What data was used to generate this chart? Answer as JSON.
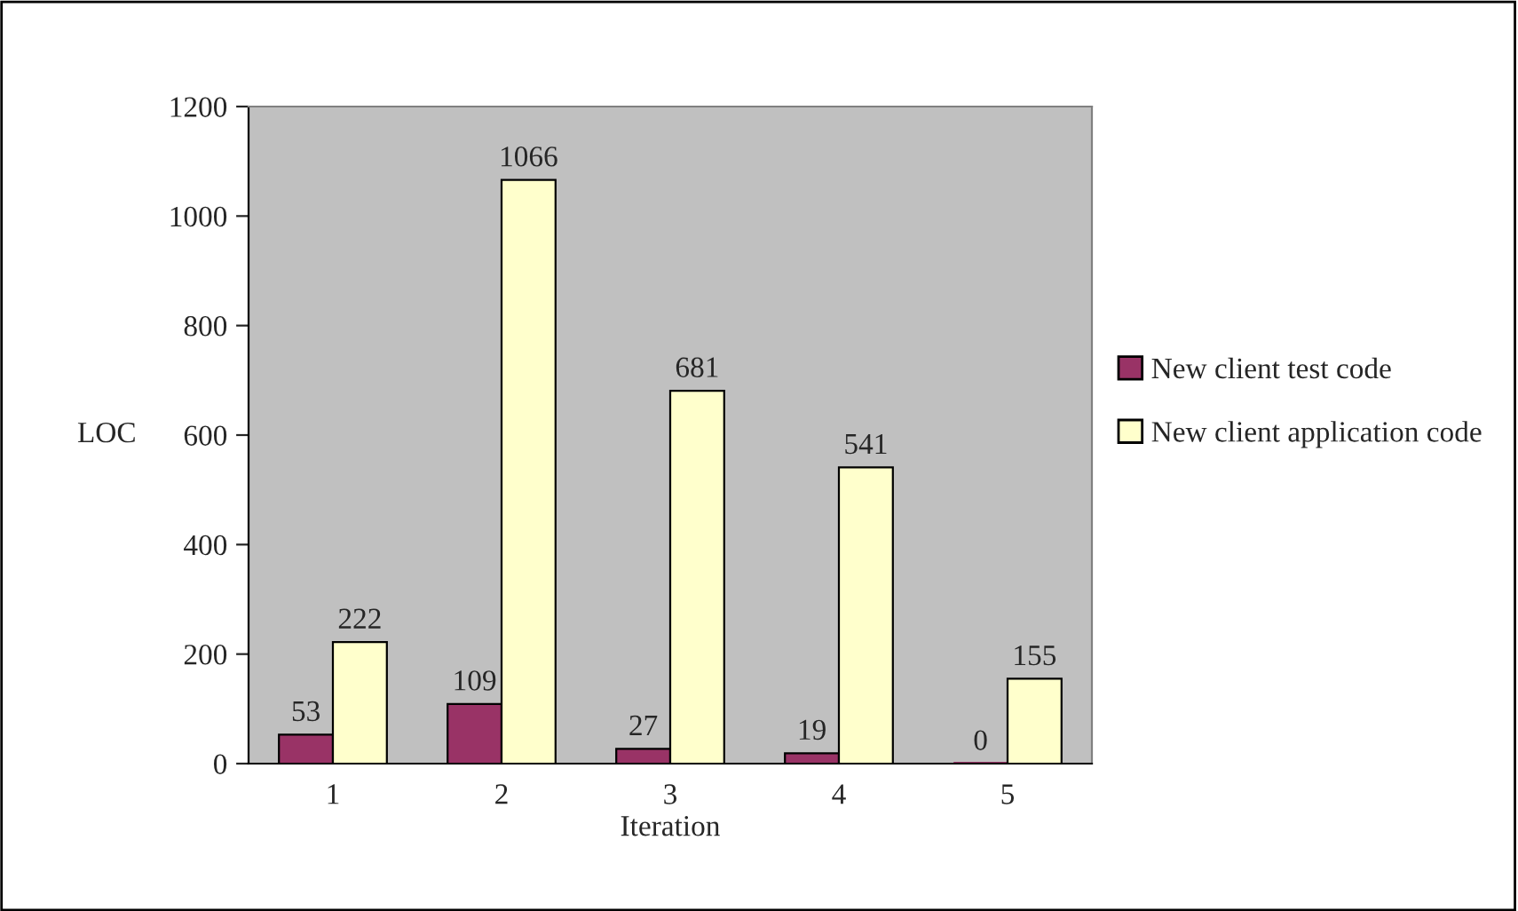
{
  "chart_data": {
    "type": "bar",
    "xlabel": "Iteration",
    "ylabel": "LOC",
    "categories": [
      "1",
      "2",
      "3",
      "4",
      "5"
    ],
    "series": [
      {
        "name": "New client test code",
        "color": "#993366",
        "values": [
          53,
          109,
          27,
          19,
          0
        ]
      },
      {
        "name": "New client application code",
        "color": "#ffffcc",
        "values": [
          222,
          1066,
          681,
          541,
          155
        ]
      }
    ],
    "ylim": [
      0,
      1200
    ],
    "yticks": [
      0,
      200,
      400,
      600,
      800,
      1000,
      1200
    ],
    "data_labels": true,
    "grid": false,
    "legend": "right"
  }
}
